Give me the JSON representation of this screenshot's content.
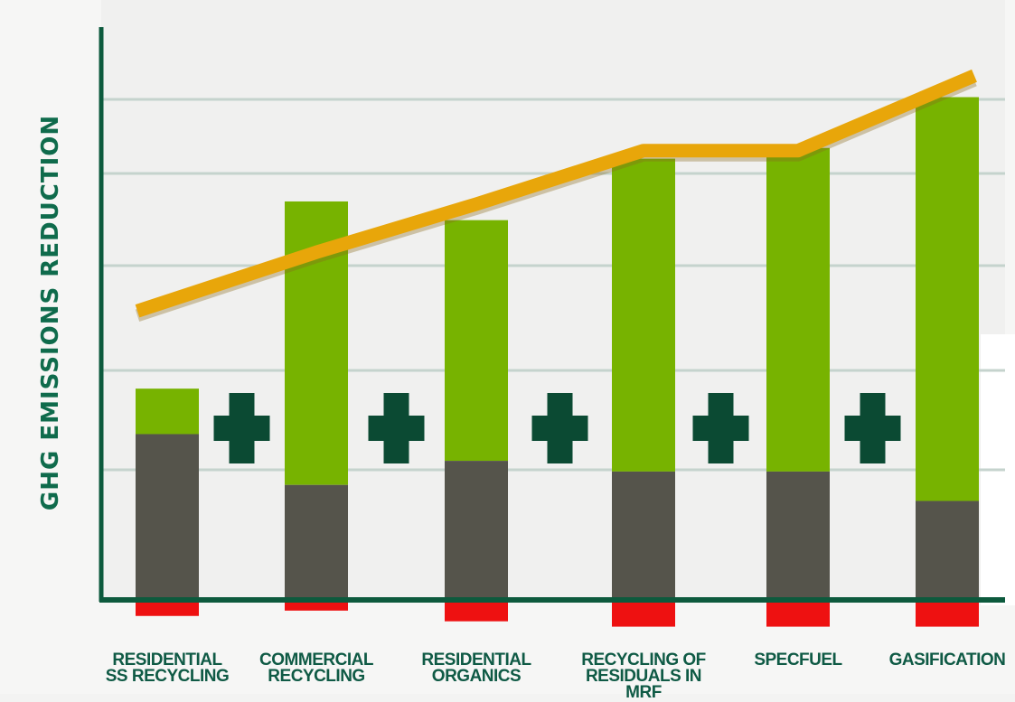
{
  "chart_data": {
    "type": "bar",
    "ylabel": "GHG EMISSIONS REDUCTION",
    "xlabel": "",
    "categories": [
      [
        "RESIDENTIAL",
        "SS RECYCLING"
      ],
      [
        "COMMERCIAL",
        "RECYCLING"
      ],
      [
        "RESIDENTIAL",
        "ORGANICS"
      ],
      [
        "RECYCLING OF",
        "RESIDUALS IN MRF"
      ],
      [
        "SPECFUEL"
      ],
      [
        "GASIFICATION"
      ]
    ],
    "ylim": [
      -5,
      100
    ],
    "grid": true,
    "series": [
      {
        "stack_part": "negative",
        "values": [
          -3,
          -2,
          -4,
          -5,
          -5,
          -5
        ],
        "color": "#ee1111"
      },
      {
        "stack_part": "base",
        "values": [
          31,
          21.5,
          26,
          24,
          24,
          18.5
        ],
        "color": "#55544b"
      },
      {
        "stack_part": "top",
        "values": [
          39.5,
          74.5,
          71,
          82.5,
          84.5,
          94
        ],
        "color": "#77b300"
      },
      {
        "stack_part": "cumulative line",
        "type": "line",
        "values": [
          54,
          65,
          74,
          84,
          84,
          98
        ],
        "color": "#e8a60a"
      }
    ],
    "plus_separators": 5,
    "separator_color": "#0b4a33"
  }
}
